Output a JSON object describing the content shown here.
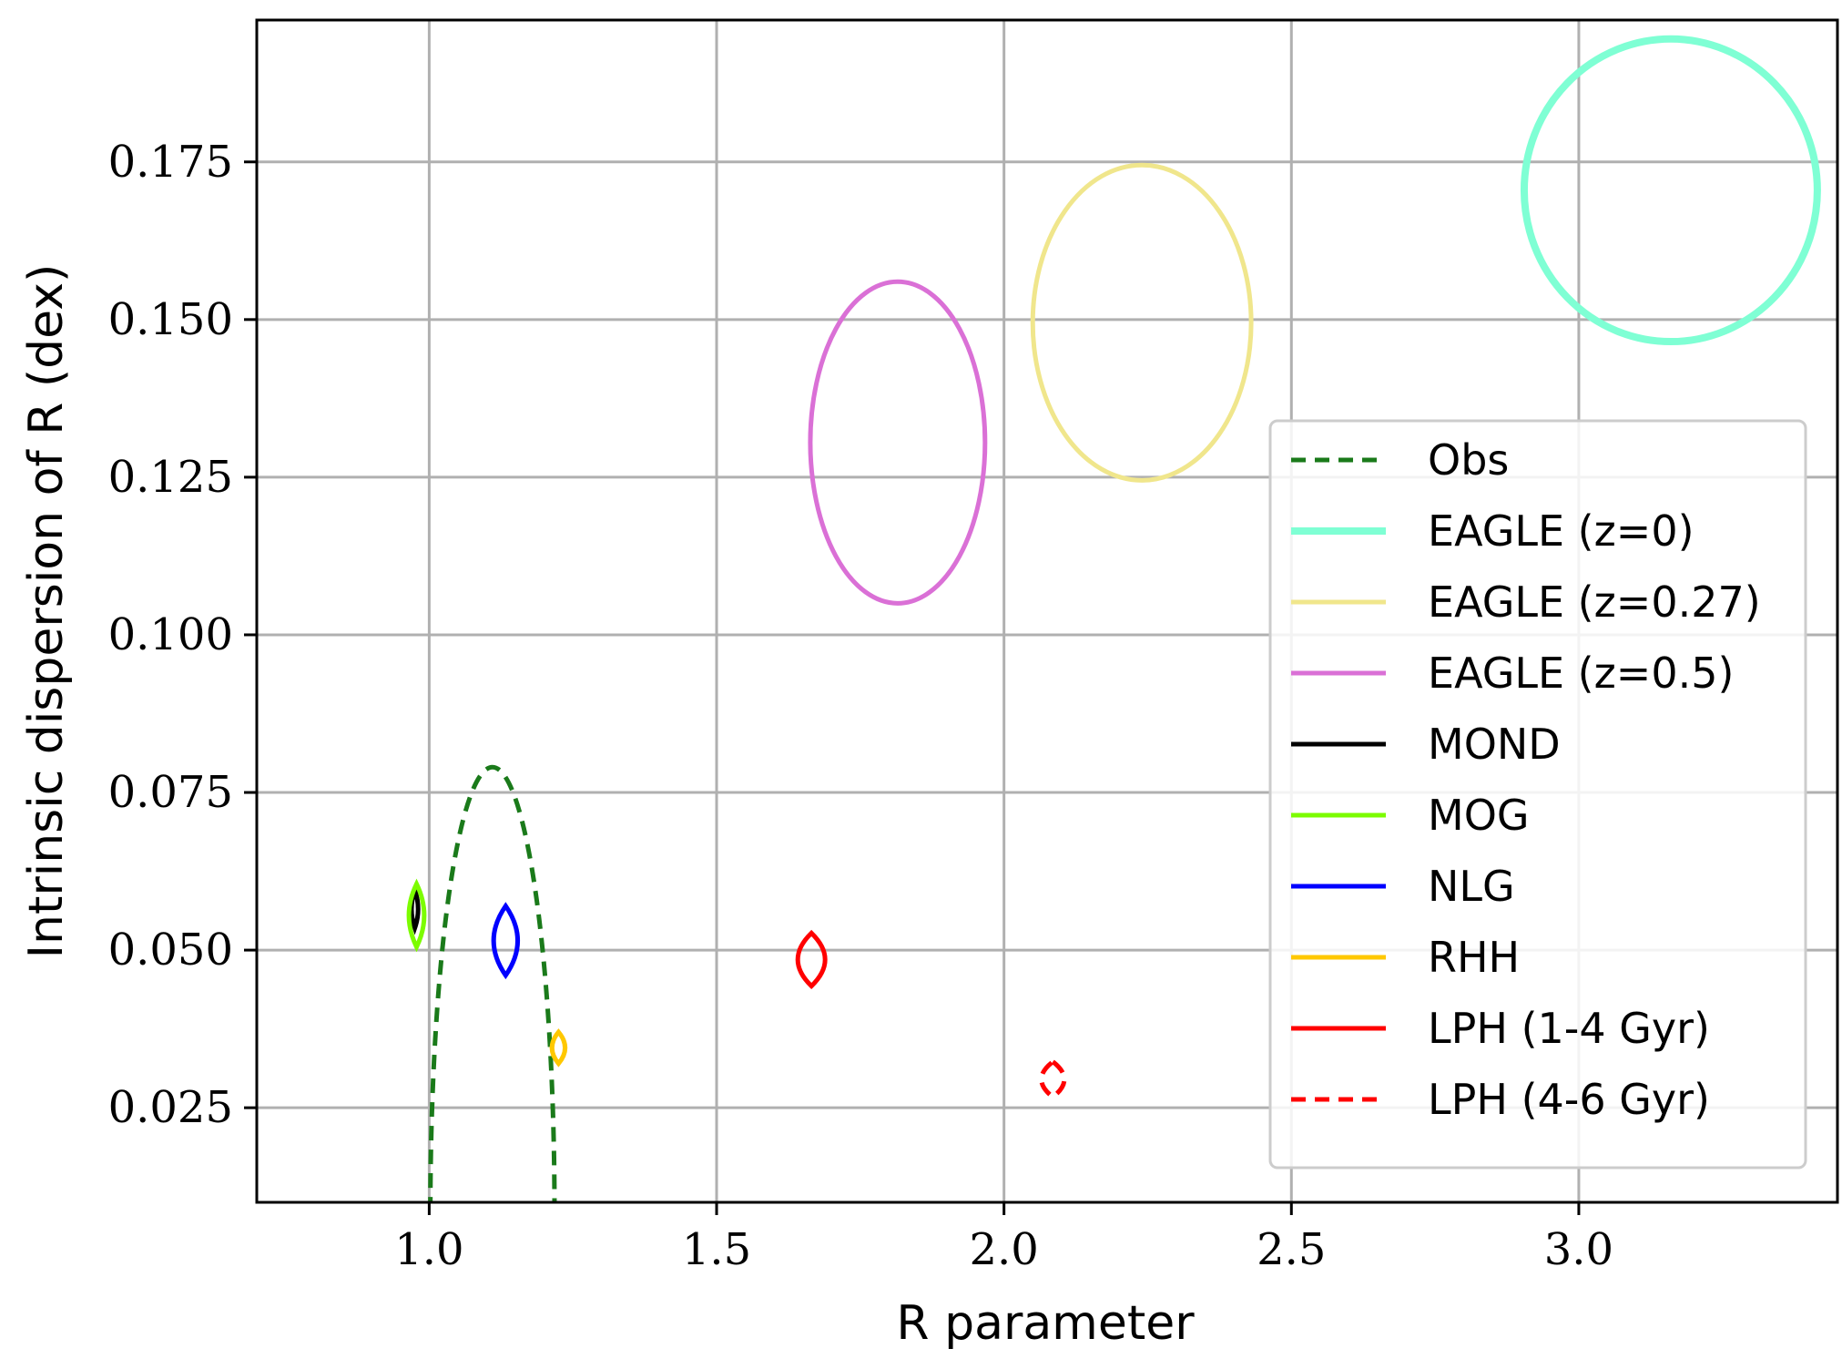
{
  "chart_data": {
    "type": "line",
    "title": "",
    "xlabel": "R parameter",
    "ylabel": "Intrinsic dispersion of R (dex)",
    "xlim": [
      0.7,
      3.45
    ],
    "ylim": [
      0.01,
      0.1975
    ],
    "grid": true,
    "legend_position": "right",
    "x_ticks": [
      1.0,
      1.5,
      2.0,
      2.5,
      3.0
    ],
    "x_tick_labels": [
      "1.0",
      "1.5",
      "2.0",
      "2.5",
      "3.0"
    ],
    "y_ticks": [
      0.025,
      0.05,
      0.075,
      0.1,
      0.125,
      0.15,
      0.175
    ],
    "y_tick_labels": [
      "0.025",
      "0.050",
      "0.075",
      "0.100",
      "0.125",
      "0.150",
      "0.175"
    ],
    "series": [
      {
        "name": "Obs",
        "color": "#1a7a1a",
        "style": "dashed",
        "shape": "arch",
        "cx": 1.11,
        "cy": 0.01,
        "rx": 0.108,
        "ry": 0.0705,
        "width": 2.5
      },
      {
        "name": "EAGLE (z=0)",
        "color": "#7fffd4",
        "style": "solid",
        "shape": "ellipse",
        "cx": 3.16,
        "cy": 0.1705,
        "rx": 0.255,
        "ry": 0.024,
        "width": 4.0
      },
      {
        "name": "EAGLE (z=0.27)",
        "color": "#f0e68c",
        "style": "solid",
        "shape": "ellipse",
        "cx": 2.24,
        "cy": 0.1495,
        "rx": 0.19,
        "ry": 0.025,
        "width": 2.5
      },
      {
        "name": "EAGLE (z=0.5)",
        "color": "#da70d6",
        "style": "solid",
        "shape": "ellipse",
        "cx": 1.815,
        "cy": 0.1305,
        "rx": 0.152,
        "ry": 0.0255,
        "width": 2.5
      },
      {
        "name": "MOND",
        "color": "#000000",
        "style": "solid",
        "shape": "lens",
        "cx": 0.975,
        "cy": 0.0565,
        "rx": 0.006,
        "ry": 0.003,
        "width": 2.5
      },
      {
        "name": "MOG",
        "color": "#7cfc00",
        "style": "solid",
        "shape": "lens",
        "cx": 0.978,
        "cy": 0.0555,
        "rx": 0.014,
        "ry": 0.005,
        "width": 2.5
      },
      {
        "name": "NLG",
        "color": "#0000ff",
        "style": "solid",
        "shape": "lens",
        "cx": 1.133,
        "cy": 0.0515,
        "rx": 0.022,
        "ry": 0.0055,
        "width": 2.5
      },
      {
        "name": "RHH",
        "color": "#ffc800",
        "style": "solid",
        "shape": "lens",
        "cx": 1.225,
        "cy": 0.0345,
        "rx": 0.012,
        "ry": 0.0025,
        "width": 2.5
      },
      {
        "name": "LPH (1-4 Gyr)",
        "color": "#ff0000",
        "style": "solid",
        "shape": "lens",
        "cx": 1.665,
        "cy": 0.0485,
        "rx": 0.025,
        "ry": 0.0042,
        "width": 2.5
      },
      {
        "name": "LPH (4-6 Gyr)",
        "color": "#ff0000",
        "style": "dashed",
        "shape": "lens",
        "cx": 2.085,
        "cy": 0.0295,
        "rx": 0.021,
        "ry": 0.0028,
        "width": 2.5
      }
    ]
  }
}
